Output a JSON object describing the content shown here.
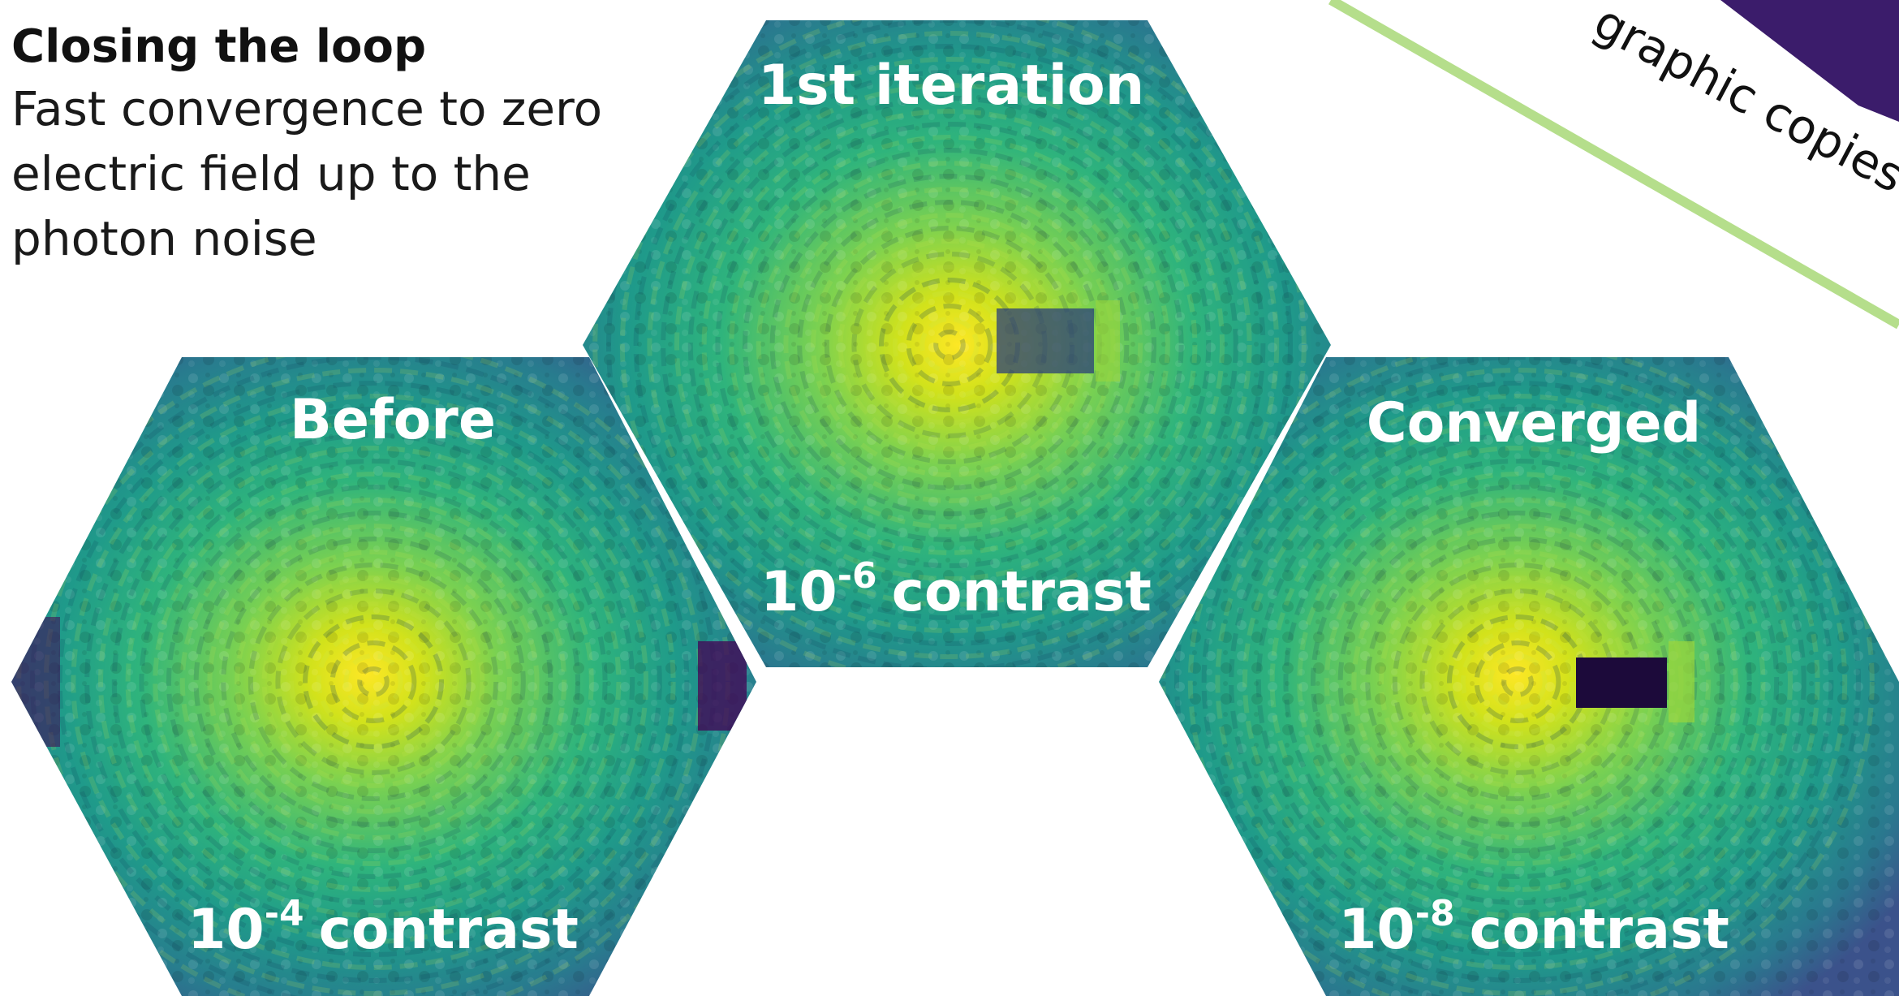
{
  "intro": {
    "title": "Closing the loop",
    "lines": [
      "Fast convergence to zero",
      "electric field up to the",
      "photon noise"
    ]
  },
  "panels": {
    "before": {
      "title": "Before",
      "contrast_base": "10",
      "contrast_exp": "-4",
      "contrast_word": "contrast",
      "dark_hole": "none"
    },
    "first": {
      "title": "1st iteration",
      "contrast_base": "10",
      "contrast_exp": "-6",
      "contrast_word": "contrast",
      "dark_hole": "partial"
    },
    "converged": {
      "title": "Converged",
      "contrast_base": "10",
      "contrast_exp": "-8",
      "contrast_word": "contrast",
      "dark_hole": "deep"
    }
  },
  "corner_text": "graphic copies",
  "colors": {
    "viridis_yellow": "#fde725",
    "viridis_green": "#5ec962",
    "viridis_teal": "#21918c",
    "viridis_blue": "#3b528b",
    "viridis_purple": "#440154",
    "accent_line": "#b5de8b"
  }
}
